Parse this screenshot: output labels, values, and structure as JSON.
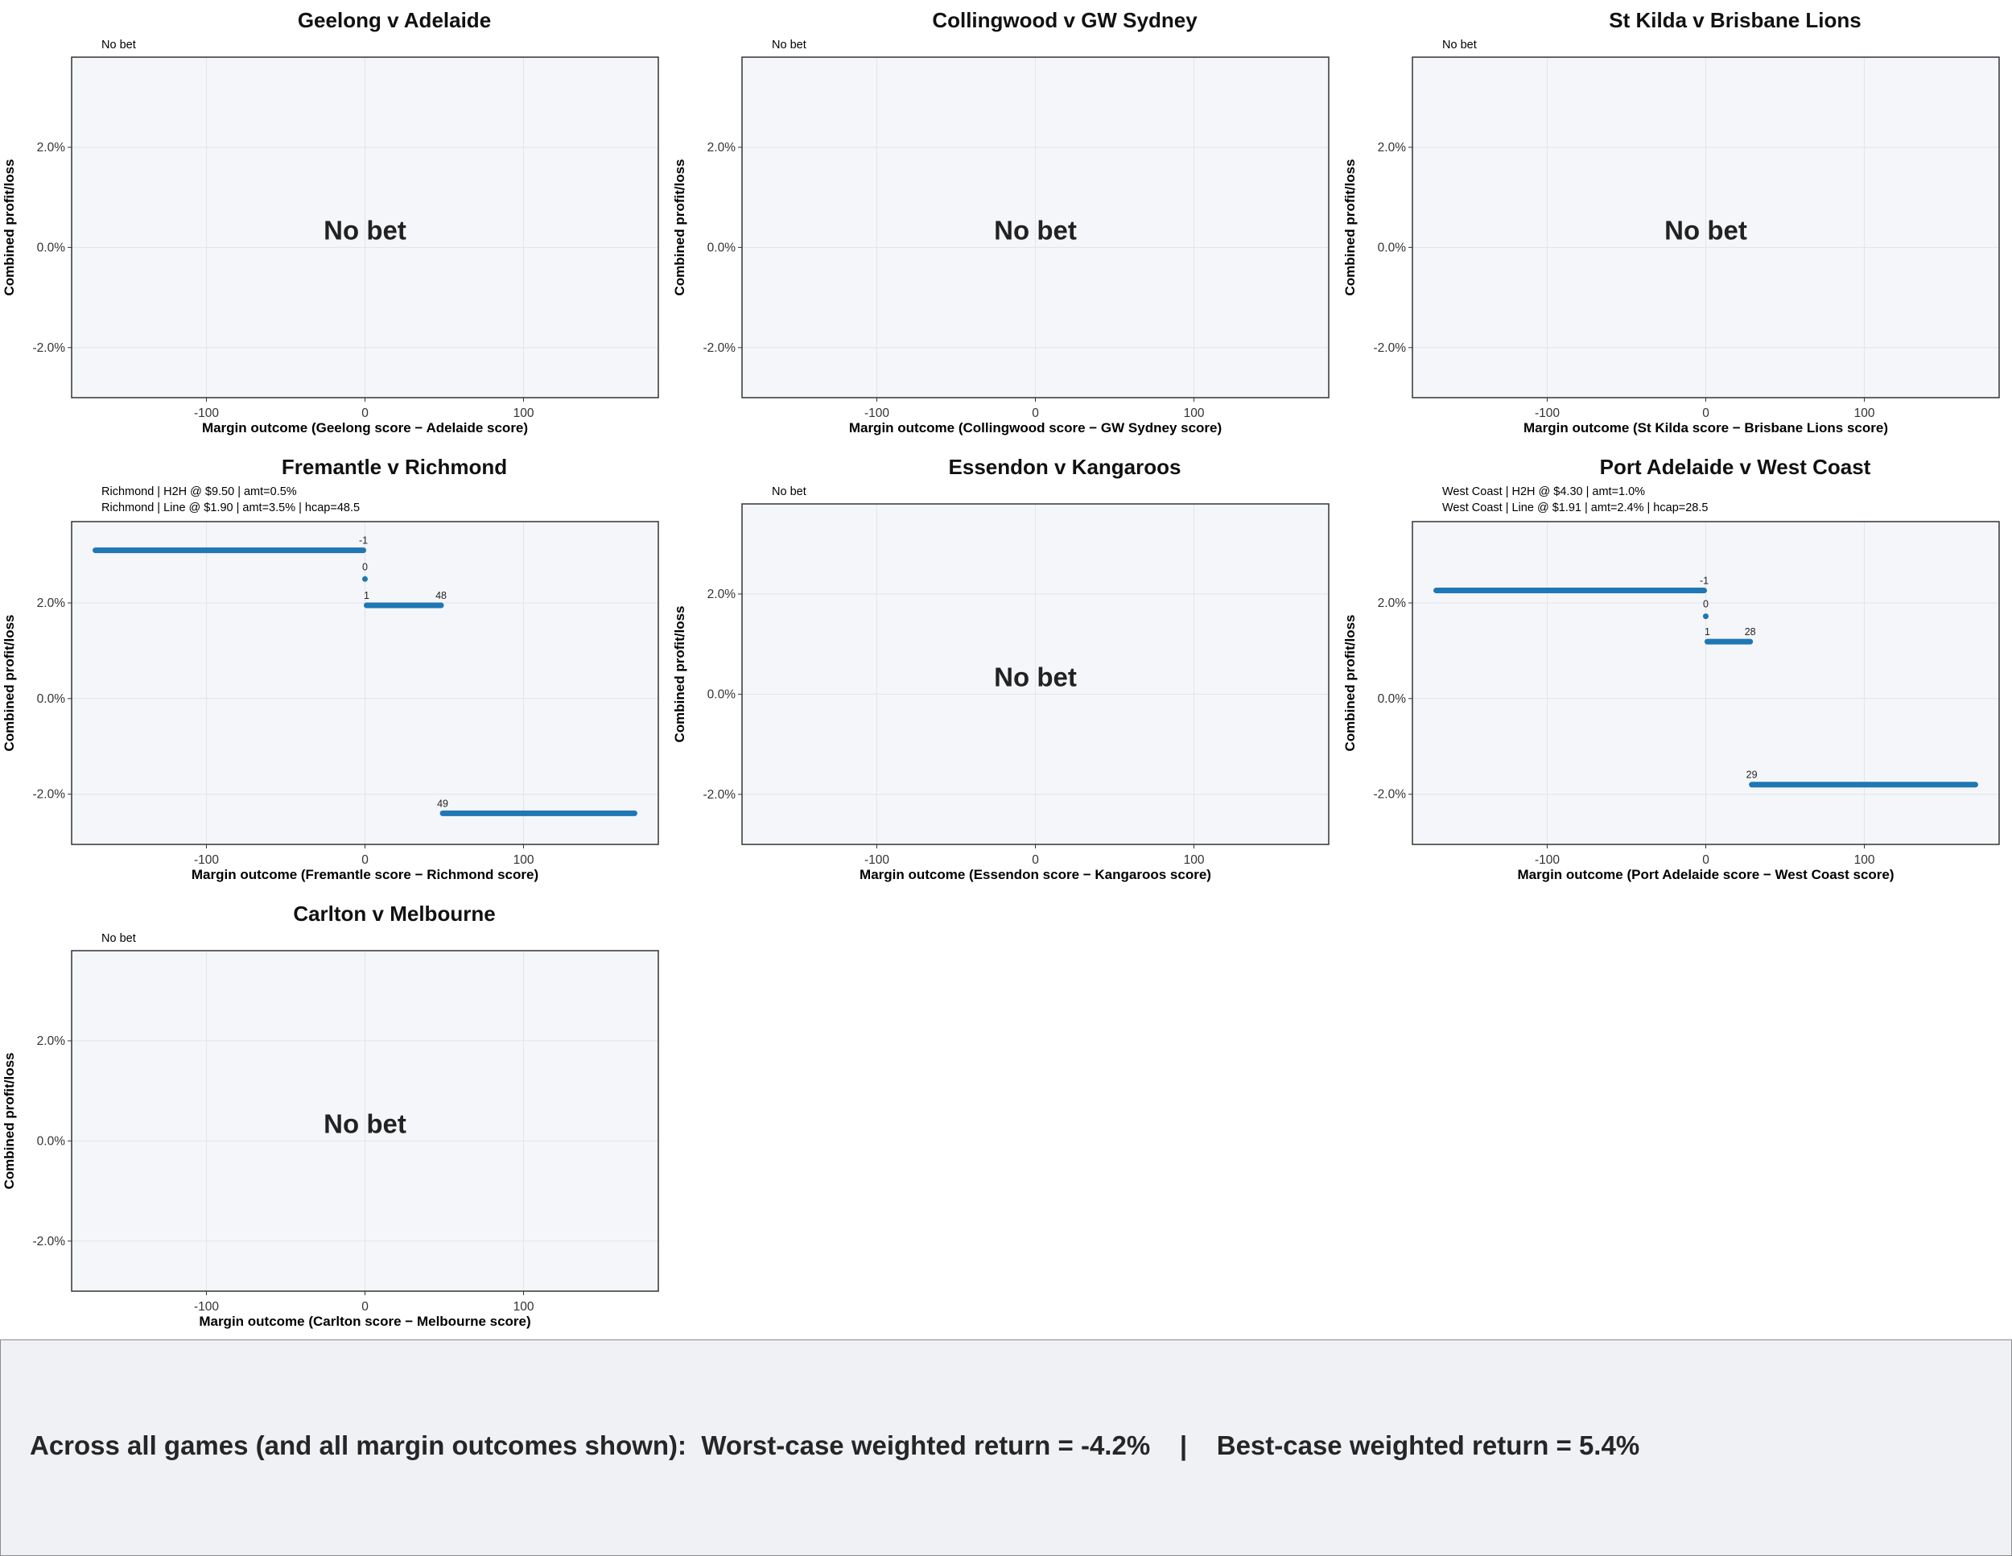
{
  "summary": {
    "text": "Across all games (and all margin outcomes shown):  Worst-case weighted return = -4.2%    |    Best-case weighted return = 5.4%"
  },
  "chart_data": [
    {
      "type": "line",
      "title": "Geelong v Adelaide",
      "subtitle": [
        "No bet"
      ],
      "xlabel": "Margin outcome (Geelong score − Adelaide score)",
      "ylabel": "Combined profit/loss",
      "xlim": [
        -185,
        185
      ],
      "ylim": [
        -3.0,
        3.8
      ],
      "x_ticks": [
        -100,
        0,
        100
      ],
      "y_ticks": [
        -2.0,
        0.0,
        2.0
      ],
      "y_tick_labels": [
        "-2.0%",
        "0.0%",
        "2.0%"
      ],
      "grid": true,
      "no_bet_label": "No bet",
      "segments": [],
      "points": [],
      "labels": []
    },
    {
      "type": "line",
      "title": "Collingwood v GW Sydney",
      "subtitle": [
        "No bet"
      ],
      "xlabel": "Margin outcome (Collingwood score − GW Sydney score)",
      "ylabel": "Combined profit/loss",
      "xlim": [
        -185,
        185
      ],
      "ylim": [
        -3.0,
        3.8
      ],
      "x_ticks": [
        -100,
        0,
        100
      ],
      "y_ticks": [
        -2.0,
        0.0,
        2.0
      ],
      "y_tick_labels": [
        "-2.0%",
        "0.0%",
        "2.0%"
      ],
      "grid": true,
      "no_bet_label": "No bet",
      "segments": [],
      "points": [],
      "labels": []
    },
    {
      "type": "line",
      "title": "St Kilda v Brisbane Lions",
      "subtitle": [
        "No bet"
      ],
      "xlabel": "Margin outcome (St Kilda score − Brisbane Lions score)",
      "ylabel": "Combined profit/loss",
      "xlim": [
        -185,
        185
      ],
      "ylim": [
        -3.0,
        3.8
      ],
      "x_ticks": [
        -100,
        0,
        100
      ],
      "y_ticks": [
        -2.0,
        0.0,
        2.0
      ],
      "y_tick_labels": [
        "-2.0%",
        "0.0%",
        "2.0%"
      ],
      "grid": true,
      "no_bet_label": "No bet",
      "segments": [],
      "points": [],
      "labels": []
    },
    {
      "type": "line",
      "title": "Fremantle v Richmond",
      "subtitle": [
        "Richmond | H2H @ $9.50 | amt=0.5%",
        "Richmond | Line @ $1.90 | amt=3.5% | hcap=48.5"
      ],
      "xlabel": "Margin outcome (Fremantle score − Richmond score)",
      "ylabel": "Combined profit/loss",
      "xlim": [
        -185,
        185
      ],
      "ylim": [
        -3.05,
        3.7
      ],
      "x_ticks": [
        -100,
        0,
        100
      ],
      "y_ticks": [
        -2.0,
        0.0,
        2.0
      ],
      "y_tick_labels": [
        "-2.0%",
        "0.0%",
        "2.0%"
      ],
      "grid": true,
      "no_bet_label": "",
      "segments": [
        {
          "x": [
            -170,
            -1
          ],
          "y": 3.1
        },
        {
          "x": [
            1,
            48
          ],
          "y": 1.95
        },
        {
          "x": [
            49,
            170
          ],
          "y": -2.4
        }
      ],
      "points": [
        {
          "x": 0,
          "y": 2.5
        }
      ],
      "labels": [
        {
          "text": "-1",
          "x": -1,
          "y": 3.1
        },
        {
          "text": "0",
          "x": 0,
          "y": 2.5
        },
        {
          "text": "1",
          "x": 1,
          "y": 1.95
        },
        {
          "text": "48",
          "x": 48,
          "y": 1.95
        },
        {
          "text": "49",
          "x": 49,
          "y": -2.4
        }
      ]
    },
    {
      "type": "line",
      "title": "Essendon v Kangaroos",
      "subtitle": [
        "No bet"
      ],
      "xlabel": "Margin outcome (Essendon score − Kangaroos score)",
      "ylabel": "Combined profit/loss",
      "xlim": [
        -185,
        185
      ],
      "ylim": [
        -3.0,
        3.8
      ],
      "x_ticks": [
        -100,
        0,
        100
      ],
      "y_ticks": [
        -2.0,
        0.0,
        2.0
      ],
      "y_tick_labels": [
        "-2.0%",
        "0.0%",
        "2.0%"
      ],
      "grid": true,
      "no_bet_label": "No bet",
      "segments": [],
      "points": [],
      "labels": []
    },
    {
      "type": "line",
      "title": "Port Adelaide v West Coast",
      "subtitle": [
        "West Coast | H2H @ $4.30 | amt=1.0%",
        "West Coast | Line @ $1.91 | amt=2.4% | hcap=28.5"
      ],
      "xlabel": "Margin outcome (Port Adelaide score − West Coast score)",
      "ylabel": "Combined profit/loss",
      "xlim": [
        -185,
        185
      ],
      "ylim": [
        -3.05,
        3.7
      ],
      "x_ticks": [
        -100,
        0,
        100
      ],
      "y_ticks": [
        -2.0,
        0.0,
        2.0
      ],
      "y_tick_labels": [
        "-2.0%",
        "0.0%",
        "2.0%"
      ],
      "grid": true,
      "no_bet_label": "",
      "segments": [
        {
          "x": [
            -170,
            -1
          ],
          "y": 2.26
        },
        {
          "x": [
            1,
            28
          ],
          "y": 1.19
        },
        {
          "x": [
            29,
            170
          ],
          "y": -1.8
        }
      ],
      "points": [
        {
          "x": 0,
          "y": 1.72
        }
      ],
      "labels": [
        {
          "text": "-1",
          "x": -1,
          "y": 2.26
        },
        {
          "text": "0",
          "x": 0,
          "y": 1.72
        },
        {
          "text": "1",
          "x": 1,
          "y": 1.19
        },
        {
          "text": "28",
          "x": 28,
          "y": 1.19
        },
        {
          "text": "29",
          "x": 29,
          "y": -1.8
        }
      ]
    },
    {
      "type": "line",
      "title": "Carlton v Melbourne",
      "subtitle": [
        "No bet"
      ],
      "xlabel": "Margin outcome (Carlton score − Melbourne score)",
      "ylabel": "Combined profit/loss",
      "xlim": [
        -185,
        185
      ],
      "ylim": [
        -3.0,
        3.8
      ],
      "x_ticks": [
        -100,
        0,
        100
      ],
      "y_ticks": [
        -2.0,
        0.0,
        2.0
      ],
      "y_tick_labels": [
        "-2.0%",
        "0.0%",
        "2.0%"
      ],
      "grid": true,
      "no_bet_label": "No bet",
      "segments": [],
      "points": [],
      "labels": []
    }
  ]
}
